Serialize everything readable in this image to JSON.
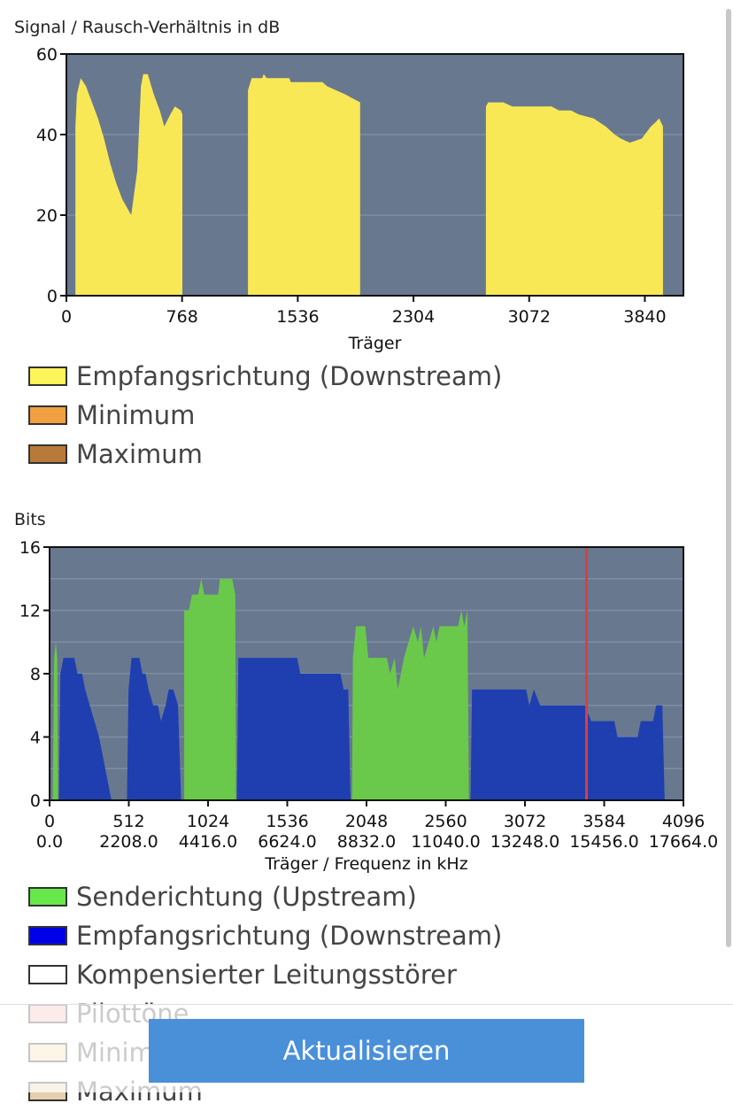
{
  "snr_chart": {
    "title": "Signal / Rausch-Verhältnis in dB",
    "chart_data": {
      "type": "area",
      "title": "Signal / Rausch-Verhältnis in dB",
      "xlabel": "Träger",
      "ylabel": "Signal / Rausch-Verhältnis in dB",
      "xlim": [
        0,
        4096
      ],
      "ylim": [
        0,
        60
      ],
      "xticks": [
        0,
        768,
        1536,
        2304,
        3072,
        3840
      ],
      "yticks": [
        0,
        20,
        40,
        60
      ],
      "grid": true,
      "series": [
        {
          "name": "Empfangsrichtung (Downstream)",
          "color": "#f9e855",
          "points": [
            [
              60,
              0
            ],
            [
              60,
              42
            ],
            [
              70,
              50
            ],
            [
              95,
              54
            ],
            [
              130,
              52
            ],
            [
              170,
              48
            ],
            [
              210,
              44
            ],
            [
              250,
              39
            ],
            [
              290,
              33
            ],
            [
              330,
              28
            ],
            [
              370,
              24
            ],
            [
              400,
              22
            ],
            [
              430,
              20
            ],
            [
              470,
              31
            ],
            [
              495,
              52
            ],
            [
              510,
              55
            ],
            [
              540,
              55
            ],
            [
              580,
              50
            ],
            [
              620,
              46
            ],
            [
              650,
              42
            ],
            [
              690,
              45
            ],
            [
              720,
              47
            ],
            [
              760,
              46
            ],
            [
              770,
              45
            ],
            [
              770,
              0
            ],
            [
              1205,
              0
            ],
            [
              1205,
              51
            ],
            [
              1230,
              54
            ],
            [
              1300,
              54
            ],
            [
              1310,
              55
            ],
            [
              1330,
              54
            ],
            [
              1480,
              54
            ],
            [
              1490,
              53
            ],
            [
              1700,
              53
            ],
            [
              1730,
              52
            ],
            [
              1790,
              51
            ],
            [
              1850,
              50
            ],
            [
              1900,
              49
            ],
            [
              1950,
              48
            ],
            [
              1950,
              0
            ],
            [
              2785,
              0
            ],
            [
              2785,
              47
            ],
            [
              2800,
              48
            ],
            [
              2900,
              48
            ],
            [
              2960,
              47
            ],
            [
              3050,
              47
            ],
            [
              3220,
              47
            ],
            [
              3270,
              46
            ],
            [
              3350,
              46
            ],
            [
              3400,
              45
            ],
            [
              3500,
              44
            ],
            [
              3580,
              42
            ],
            [
              3640,
              40
            ],
            [
              3680,
              39
            ],
            [
              3740,
              38
            ],
            [
              3820,
              39
            ],
            [
              3880,
              42
            ],
            [
              3910,
              43
            ],
            [
              3935,
              44
            ],
            [
              3960,
              42
            ],
            [
              3960,
              0
            ]
          ]
        }
      ]
    },
    "legend": [
      {
        "label": "Empfangsrichtung (Downstream)",
        "color": "#fcf55a"
      },
      {
        "label": "Minimum",
        "color": "#f0a040"
      },
      {
        "label": "Maximum",
        "color": "#b87a3a"
      }
    ]
  },
  "bits_chart": {
    "title": "Bits",
    "chart_data": {
      "type": "area",
      "title": "Bits",
      "xlabel": "Träger / Frequenz in kHz",
      "ylabel": "Bits",
      "xlim": [
        0,
        4096
      ],
      "ylim": [
        0,
        16
      ],
      "xticks": [
        0,
        512,
        1024,
        1536,
        2048,
        2560,
        3072,
        3584,
        4096
      ],
      "xticks_khz": [
        "0.0",
        "2208.0",
        "4416.0",
        "6624.0",
        "8832.0",
        "11040.0",
        "13248.0",
        "15456.0",
        "17664.0"
      ],
      "yticks": [
        0,
        4,
        8,
        12,
        16
      ],
      "marker_line": {
        "x": 3470,
        "color": "#d84040"
      },
      "grid": true,
      "series": [
        {
          "name": "Senderichtung (Upstream)",
          "color": "#6ac84a",
          "points": [
            [
              20,
              0
            ],
            [
              30,
              9
            ],
            [
              40,
              10
            ],
            [
              50,
              9
            ],
            [
              55,
              0
            ],
            [
              870,
              0
            ],
            [
              870,
              12
            ],
            [
              900,
              12
            ],
            [
              920,
              13
            ],
            [
              960,
              13
            ],
            [
              980,
              14
            ],
            [
              1000,
              13
            ],
            [
              1090,
              13
            ],
            [
              1100,
              14
            ],
            [
              1180,
              14
            ],
            [
              1200,
              13
            ],
            [
              1205,
              0
            ],
            [
              1955,
              0
            ],
            [
              1960,
              9
            ],
            [
              1980,
              11
            ],
            [
              2040,
              11
            ],
            [
              2060,
              9
            ],
            [
              2100,
              9
            ],
            [
              2180,
              9
            ],
            [
              2200,
              8
            ],
            [
              2230,
              9
            ],
            [
              2250,
              7
            ],
            [
              2290,
              9
            ],
            [
              2320,
              10
            ],
            [
              2350,
              11
            ],
            [
              2380,
              10
            ],
            [
              2400,
              11
            ],
            [
              2420,
              9
            ],
            [
              2450,
              10
            ],
            [
              2480,
              11
            ],
            [
              2500,
              10
            ],
            [
              2520,
              11
            ],
            [
              2640,
              11
            ],
            [
              2660,
              12
            ],
            [
              2680,
              11
            ],
            [
              2700,
              12
            ],
            [
              2710,
              0
            ]
          ]
        },
        {
          "name": "Empfangsrichtung (Downstream)",
          "color": "#1f3fb0",
          "points": [
            [
              60,
              0
            ],
            [
              70,
              8
            ],
            [
              90,
              9
            ],
            [
              160,
              9
            ],
            [
              180,
              8
            ],
            [
              210,
              8
            ],
            [
              230,
              7
            ],
            [
              260,
              6
            ],
            [
              290,
              5
            ],
            [
              320,
              4
            ],
            [
              340,
              3
            ],
            [
              360,
              2
            ],
            [
              380,
              1
            ],
            [
              400,
              0
            ],
            [
              500,
              0
            ],
            [
              510,
              7
            ],
            [
              530,
              9
            ],
            [
              580,
              9
            ],
            [
              600,
              8
            ],
            [
              620,
              8
            ],
            [
              640,
              7
            ],
            [
              670,
              6
            ],
            [
              700,
              6
            ],
            [
              720,
              5
            ],
            [
              750,
              6
            ],
            [
              770,
              7
            ],
            [
              800,
              7
            ],
            [
              830,
              6
            ],
            [
              850,
              0
            ],
            [
              1210,
              0
            ],
            [
              1220,
              9
            ],
            [
              1600,
              9
            ],
            [
              1620,
              8
            ],
            [
              1880,
              8
            ],
            [
              1900,
              7
            ],
            [
              1930,
              7
            ],
            [
              1945,
              0
            ],
            [
              2720,
              0
            ],
            [
              2730,
              7
            ],
            [
              3080,
              7
            ],
            [
              3100,
              6
            ],
            [
              3130,
              7
            ],
            [
              3170,
              6
            ],
            [
              3460,
              6
            ],
            [
              3500,
              5
            ],
            [
              3650,
              5
            ],
            [
              3670,
              4
            ],
            [
              3800,
              4
            ],
            [
              3820,
              5
            ],
            [
              3900,
              5
            ],
            [
              3920,
              6
            ],
            [
              3960,
              6
            ],
            [
              3975,
              0
            ]
          ]
        }
      ]
    },
    "legend": [
      {
        "label": "Senderichtung (Upstream)",
        "color": "#66e84a"
      },
      {
        "label": "Empfangsrichtung (Downstream)",
        "color": "#0000e8"
      },
      {
        "label": "Kompensierter Leitungsstörer",
        "color": "#ffffff"
      },
      {
        "label": "Pilottöne",
        "color": "#f5b8b8"
      },
      {
        "label": "Minimum",
        "color": "#f7d9a8"
      },
      {
        "label": "Maximum",
        "color": "#e4cfae"
      }
    ]
  },
  "button": {
    "label": "Aktualisieren"
  }
}
